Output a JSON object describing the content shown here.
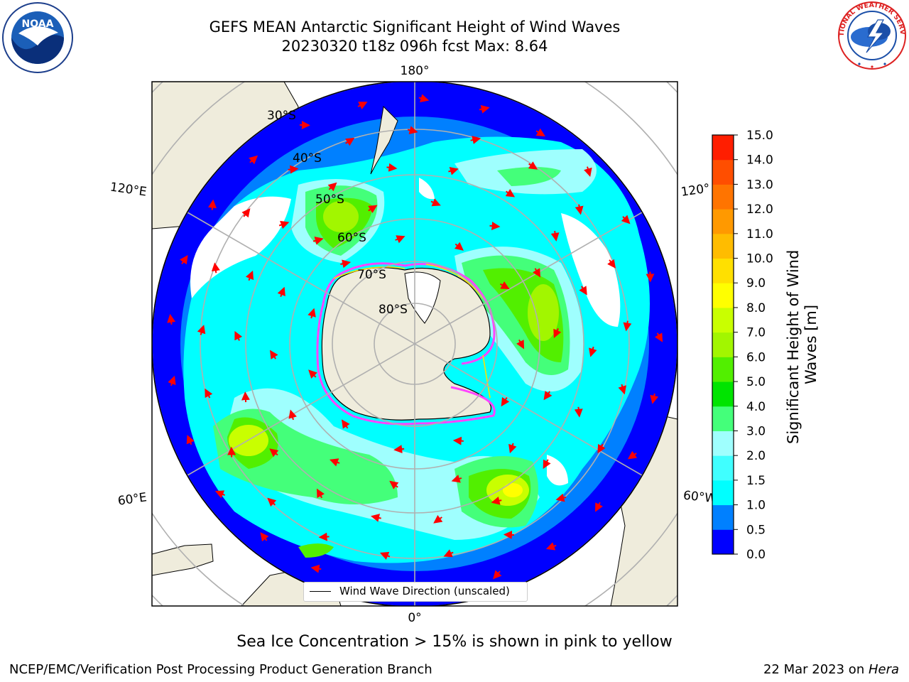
{
  "title": {
    "line1": "GEFS MEAN Antarctic Significant Height of Wind Waves",
    "line2": "20230320 t18z 096h fcst   Max: 8.64"
  },
  "logos": {
    "left": "noaa-logo",
    "right": "national-weather-service-logo",
    "left_text": "NOAA",
    "right_text": "NATIONAL WEATHER SERVICE"
  },
  "map": {
    "projection": "south polar stereographic",
    "longitude_labels": {
      "top": "180°",
      "bottom": "0°",
      "upper_left": "120°E",
      "lower_left": "60°E",
      "upper_right": "120°",
      "lower_right": "60°W"
    },
    "latitude_labels": [
      "30°S",
      "40°S",
      "50°S",
      "60°S",
      "70°S",
      "80°S"
    ],
    "land_color": "#efecdc",
    "ocean_no_data_color": "#ffffff",
    "graticule_color": "#b0b0b0"
  },
  "legend": {
    "label": "Wind Wave Direction (unscaled)"
  },
  "colorbar": {
    "label": "Significant Height of Wind Waves [m]",
    "label_line1": "Significant Height of Wind",
    "label_line2": "Waves [m]",
    "ticks": [
      "0.0",
      "0.5",
      "1.0",
      "1.5",
      "2.0",
      "3.0",
      "4.0",
      "5.0",
      "6.0",
      "7.0",
      "8.0",
      "9.0",
      "10.0",
      "11.0",
      "12.0",
      "13.0",
      "14.0",
      "15.0"
    ],
    "colors": [
      "#0000ff",
      "#0080ff",
      "#00ffff",
      "#40ffff",
      "#9ffffe",
      "#44ff7a",
      "#00e400",
      "#52ef00",
      "#a2f600",
      "#c9ff00",
      "#ffff00",
      "#ffe000",
      "#ffbc00",
      "#ff9900",
      "#ff7400",
      "#ff4e00",
      "#ff1e00"
    ]
  },
  "arrow_color": "#ff0000",
  "sea_ice_note": "Sea Ice Concentration > 15% is shown in pink to yellow",
  "footer": {
    "left": "NCEP/EMC/Verification Post Processing Product Generation Branch",
    "right_prefix": "22 Mar 2023 on ",
    "right_machine": "Hera"
  }
}
